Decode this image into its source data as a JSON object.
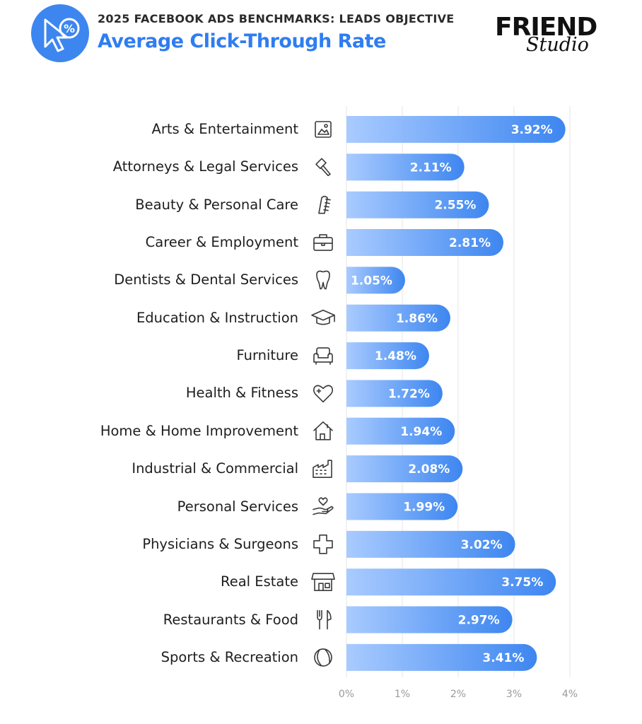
{
  "header": {
    "kicker": "2025 FACEBOOK ADS BENCHMARKS: LEADS OBJECTIVE",
    "title": "Average Click-Through Rate",
    "badge_icon": "cursor-percent-icon"
  },
  "logo": {
    "main": "FRIEND",
    "script": "Studio"
  },
  "colors": {
    "accent": "#2f7df0",
    "bar_start": "#a9cbff",
    "bar_end": "#3d86f0",
    "badge": "#3d86f0"
  },
  "chart_data": {
    "type": "bar",
    "orientation": "horizontal",
    "title": "Average Click-Through Rate",
    "categories": [
      "Arts & Entertainment",
      "Attorneys & Legal Services",
      "Beauty & Personal Care",
      "Career & Employment",
      "Dentists & Dental Services",
      "Education & Instruction",
      "Furniture",
      "Health & Fitness",
      "Home & Home Improvement",
      "Industrial & Commercial",
      "Personal Services",
      "Physicians & Surgeons",
      "Real Estate",
      "Restaurants & Food",
      "Sports & Recreation"
    ],
    "values": [
      3.92,
      2.11,
      2.55,
      2.81,
      1.05,
      1.86,
      1.48,
      1.72,
      1.94,
      2.08,
      1.99,
      3.02,
      3.75,
      2.97,
      3.41
    ],
    "value_labels": [
      "3.92%",
      "2.11%",
      "2.55%",
      "2.81%",
      "1.05%",
      "1.86%",
      "1.48%",
      "1.72%",
      "1.94%",
      "2.08%",
      "1.99%",
      "3.02%",
      "3.75%",
      "2.97%",
      "3.41%"
    ],
    "icons": [
      "picture-icon",
      "gavel-icon",
      "comb-icon",
      "briefcase-icon",
      "tooth-icon",
      "graduation-cap-icon",
      "armchair-icon",
      "heart-plus-icon",
      "house-icon",
      "factory-icon",
      "hand-heart-icon",
      "medical-cross-icon",
      "storefront-icon",
      "fork-knife-icon",
      "ball-icon"
    ],
    "xlim": [
      0,
      4
    ],
    "xticks": [
      "0%",
      "1%",
      "2%",
      "3%",
      "4%"
    ],
    "grid": true,
    "legend": "none"
  }
}
